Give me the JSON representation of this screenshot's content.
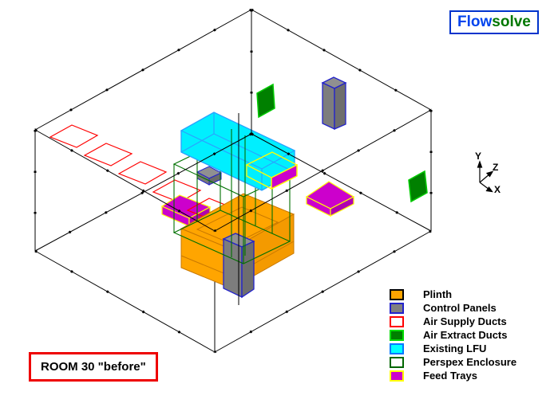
{
  "title_badge": {
    "part1": "Flow",
    "part2": "solve"
  },
  "room_label": "ROOM 30 \"before\"",
  "axis_indicator": {
    "y": "Y",
    "z": "Z",
    "x": "X"
  },
  "legend": {
    "items": [
      {
        "label": "Plinth",
        "fill": "#ffa500",
        "border": "#000000"
      },
      {
        "label": "Control Panels",
        "fill": "#808080",
        "border": "#2222cc"
      },
      {
        "label": "Air Supply Ducts",
        "fill": "#ffffff",
        "border": "#ff0000"
      },
      {
        "label": "Air Extract Ducts",
        "fill": "#008000",
        "border": "#00dd00"
      },
      {
        "label": "Existing LFU",
        "fill": "#00ffff",
        "border": "#0077ff"
      },
      {
        "label": "Perspex Enclosure",
        "fill": "#ffffff",
        "border": "#006600"
      },
      {
        "label": "Feed Trays",
        "fill": "#cc00cc",
        "border": "#ffff00"
      }
    ]
  },
  "colors": {
    "room_wireframe": "#000000",
    "plinth_fill": "#ffa500",
    "plinth_edge": "#c87800",
    "control_panel_fill": "#808080",
    "control_panel_edge": "#2222cc",
    "air_supply_duct": "#ff0000",
    "air_extract_fill": "#008000",
    "air_extract_edge": "#00cc00",
    "lfu_fill": "#00eeff",
    "lfu_edge": "#29a3ff",
    "perspex": "#007000",
    "feed_tray_fill": "#cc00cc",
    "feed_tray_edge": "#ffff00",
    "title_blue": "#0044ee",
    "title_green": "#007700",
    "room_label_border": "#ee0000"
  }
}
